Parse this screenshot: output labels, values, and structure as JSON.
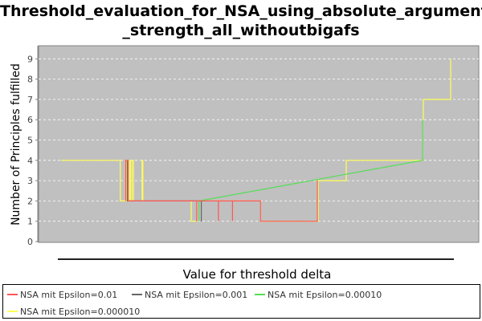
{
  "chart_data": {
    "type": "line",
    "title_line1": "Threshold_evaluation_for_NSA_using_absolute_argument",
    "title_line2": "_strength_all_withoutbigafs",
    "xlabel": "Value for threshold delta",
    "ylabel": "Number of Principles fulfilled",
    "ylim": [
      0,
      9.5
    ],
    "y_ticks": [
      0,
      1,
      2,
      3,
      4,
      5,
      6,
      7,
      8,
      9
    ],
    "grid": true,
    "legend_position": "bottom",
    "series": [
      {
        "name": "NSA mit Epsilon=0.01",
        "color": "#ff5555",
        "points": [
          [
            0.166,
            4
          ],
          [
            0.166,
            2
          ],
          [
            0.166,
            4
          ],
          [
            0.172,
            4
          ],
          [
            0.172,
            2
          ],
          [
            0.348,
            2
          ],
          [
            0.348,
            1
          ],
          [
            0.348,
            2
          ],
          [
            0.358,
            2
          ],
          [
            0.358,
            2
          ],
          [
            0.404,
            2
          ],
          [
            0.404,
            1
          ],
          [
            0.404,
            2
          ],
          [
            0.44,
            2
          ],
          [
            0.44,
            1
          ],
          [
            0.44,
            2
          ],
          [
            0.512,
            2
          ],
          [
            0.512,
            1
          ],
          [
            0.658,
            1
          ],
          [
            0.658,
            3
          ]
        ]
      },
      {
        "name": "NSA mit Epsilon=0.001",
        "color": "#666666",
        "points": [
          [
            0.17,
            4
          ],
          [
            0.17,
            2
          ],
          [
            0.36,
            2
          ],
          [
            0.36,
            1
          ],
          [
            0.36,
            2
          ]
        ]
      },
      {
        "name": "NSA mit Epsilon=0.00010",
        "color": "#55dd55",
        "points": [
          [
            0.354,
            2
          ],
          [
            0.354,
            1
          ],
          [
            0.354,
            2
          ],
          [
            0.928,
            4
          ],
          [
            0.928,
            6
          ],
          [
            0.928,
            4
          ]
        ]
      },
      {
        "name": "NSA mit Epsilon=0.000010",
        "color": "#ffff55",
        "points": [
          [
            0.0,
            4
          ],
          [
            0.152,
            4
          ],
          [
            0.152,
            2
          ],
          [
            0.166,
            2
          ],
          [
            0.166,
            4
          ],
          [
            0.168,
            4
          ],
          [
            0.168,
            2
          ],
          [
            0.176,
            2
          ],
          [
            0.176,
            4
          ],
          [
            0.178,
            4
          ],
          [
            0.178,
            2
          ],
          [
            0.182,
            2
          ],
          [
            0.182,
            4
          ],
          [
            0.186,
            4
          ],
          [
            0.186,
            2
          ],
          [
            0.208,
            2
          ],
          [
            0.208,
            4
          ],
          [
            0.21,
            4
          ],
          [
            0.21,
            2
          ],
          [
            0.334,
            2
          ],
          [
            0.334,
            1
          ],
          [
            0.348,
            1
          ],
          [
            0.348,
            2
          ],
          [
            0.512,
            2
          ],
          [
            0.512,
            1
          ],
          [
            0.66,
            1
          ],
          [
            0.66,
            3
          ],
          [
            0.732,
            3
          ],
          [
            0.732,
            4
          ],
          [
            0.928,
            4
          ],
          [
            0.928,
            6
          ],
          [
            0.93,
            6
          ],
          [
            0.93,
            7
          ],
          [
            1.0,
            7
          ],
          [
            1.0,
            9
          ]
        ]
      }
    ]
  }
}
